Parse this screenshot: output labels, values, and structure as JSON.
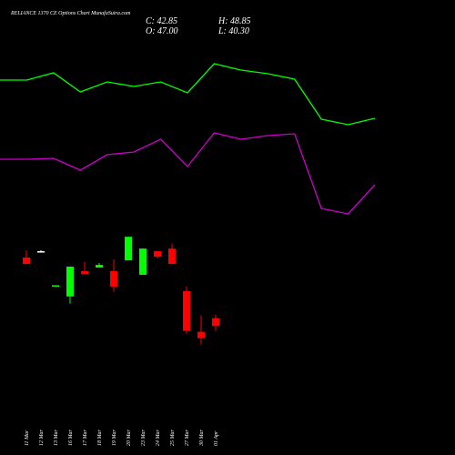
{
  "chart_data": [
    {
      "type": "candlestick",
      "title": "RELIANCE 1370  CE Options  Chart MunafaSutra.com",
      "ohlc_text": [
        "C: 42.85",
        "H: 48.85",
        "O: 47.00",
        "L: 40.30"
      ],
      "categories": [
        "11 Mar",
        "12 Mar",
        "13 Mar",
        "16 Mar",
        "17 Mar",
        "18 Mar",
        "19 Mar",
        "20 Mar",
        "23 Mar",
        "24 Mar",
        "25 Mar",
        "27 Mar",
        "30 Mar",
        "01 Apr"
      ],
      "open": [
        78.9,
        82.2,
        64.0,
        58.4,
        71.7,
        73.6,
        71.7,
        77.4,
        69.8,
        82.2,
        83.6,
        61.2,
        39.8,
        47.0
      ],
      "high": [
        82.7,
        82.7,
        64.3,
        74.1,
        76.5,
        76.0,
        77.9,
        89.8,
        83.6,
        82.2,
        86.0,
        63.6,
        48.4,
        48.85
      ],
      "low": [
        75.5,
        82.0,
        64.0,
        54.6,
        70.3,
        73.6,
        60.8,
        77.4,
        69.8,
        78.4,
        75.5,
        38.8,
        33.1,
        40.3
      ],
      "close": [
        75.5,
        82.2,
        64.3,
        74.1,
        70.3,
        75.0,
        63.6,
        89.8,
        83.6,
        79.3,
        75.5,
        40.3,
        36.5,
        42.85
      ],
      "up_color": "#00ff00",
      "down_color": "#ff0000",
      "flat_color": "#ffffff",
      "ylim": [
        20,
        110
      ]
    },
    {
      "type": "line",
      "series": [
        {
          "color": "#00ff00",
          "values": [
            162,
            162,
            170,
            149,
            160,
            155,
            160,
            148,
            180,
            173,
            169,
            163,
            119,
            113,
            120
          ]
        },
        {
          "color": "#cc00cc",
          "values": [
            75,
            75,
            76,
            63,
            80,
            83,
            97,
            67,
            104,
            97,
            101,
            103,
            21,
            15,
            47
          ]
        }
      ],
      "ylim": [
        0,
        250
      ]
    }
  ]
}
